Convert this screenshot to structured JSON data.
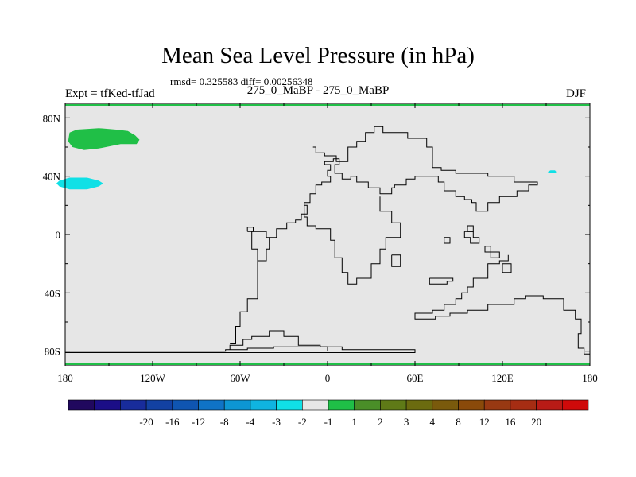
{
  "header": {
    "title": "Mean Sea Level Pressure (in hPa)",
    "stats": "rmsd= 0.325583 diff= 0.00256348",
    "expt": "Expt = tfKed-tfJad",
    "subtitle": "275_0_MaBP - 275_0_MaBP",
    "season": "DJF"
  },
  "chart_data": {
    "type": "heatmap",
    "title": "Mean Sea Level Pressure (in hPa)",
    "xlim": [
      -180,
      180
    ],
    "ylim": [
      -90,
      90
    ],
    "x_ticks": [
      {
        "value": -180,
        "label": "180"
      },
      {
        "value": -120,
        "label": "120W"
      },
      {
        "value": -60,
        "label": "60W"
      },
      {
        "value": 0,
        "label": "0"
      },
      {
        "value": 60,
        "label": "60E"
      },
      {
        "value": 120,
        "label": "120E"
      },
      {
        "value": 180,
        "label": "180"
      }
    ],
    "y_ticks": [
      {
        "value": 80,
        "label": "80N"
      },
      {
        "value": 40,
        "label": "40N"
      },
      {
        "value": 0,
        "label": "0"
      },
      {
        "value": -40,
        "label": "40S"
      },
      {
        "value": -80,
        "label": "80S"
      }
    ],
    "background_color": "#e6e6e6",
    "colorbar": {
      "colors": [
        "#20085e",
        "#1b0e87",
        "#182c9b",
        "#1241a2",
        "#0f55b1",
        "#0f73c6",
        "#0d96d3",
        "#0fb4e0",
        "#10e0e6",
        "#e6e6e6",
        "#1fbf47",
        "#4a8e28",
        "#5f7a17",
        "#6b6b0f",
        "#7a5a0c",
        "#8a4a0a",
        "#983912",
        "#a62d13",
        "#b81b16",
        "#cf0a0a"
      ],
      "labels": [
        "-20",
        "-16",
        "-12",
        "-8",
        "-4",
        "-3",
        "-2",
        "-1",
        "1",
        "2",
        "3",
        "4",
        "8",
        "12",
        "16",
        "20"
      ]
    },
    "anomalies": [
      {
        "color": "#20bf47",
        "lon": -157,
        "lat": 67
      },
      {
        "color": "#10e0e6",
        "lon": -170,
        "lat": 35
      },
      {
        "color": "#10e0e6",
        "lon": 153,
        "lat": 43
      }
    ],
    "coastlines": [
      [
        [
          -180,
          -80
        ],
        [
          -70,
          -80
        ],
        [
          -70,
          -79
        ],
        [
          -55,
          -79
        ],
        [
          -55,
          -78
        ],
        [
          -37,
          -78
        ],
        [
          -37,
          -77
        ],
        [
          10,
          -77
        ],
        [
          10,
          -79
        ],
        [
          60,
          -79
        ],
        [
          60,
          -81
        ],
        [
          -180,
          -81
        ]
      ],
      [
        [
          -67,
          -79
        ],
        [
          -67,
          -76
        ],
        [
          -58,
          -76
        ],
        [
          -58,
          -72
        ],
        [
          -52,
          -72
        ],
        [
          -52,
          -70
        ],
        [
          -40,
          -70
        ],
        [
          -40,
          -66
        ],
        [
          -30,
          -66
        ],
        [
          -30,
          -70
        ],
        [
          -20,
          -70
        ],
        [
          -20,
          -76
        ],
        [
          -5,
          -76
        ],
        [
          -5,
          -77
        ],
        [
          0,
          -77
        ],
        [
          0,
          -80
        ]
      ],
      [
        [
          -67,
          -75
        ],
        [
          -63,
          -75
        ],
        [
          -63,
          -63
        ],
        [
          -60,
          -63
        ],
        [
          -60,
          -53
        ],
        [
          -55,
          -53
        ],
        [
          -55,
          -44
        ],
        [
          -48,
          -44
        ],
        [
          -48,
          -18
        ],
        [
          -42,
          -18
        ],
        [
          -42,
          -10
        ],
        [
          -40,
          -10
        ],
        [
          -40,
          -2
        ],
        [
          -35,
          -2
        ],
        [
          -35,
          4
        ],
        [
          -28,
          4
        ],
        [
          -28,
          8
        ],
        [
          -22,
          8
        ],
        [
          -22,
          10
        ],
        [
          -18,
          10
        ],
        [
          -18,
          14
        ],
        [
          -14,
          14
        ],
        [
          -14,
          20
        ],
        [
          -16,
          20
        ],
        [
          -16,
          22
        ],
        [
          -12,
          22
        ],
        [
          -12,
          28
        ],
        [
          -8,
          28
        ],
        [
          -8,
          34
        ],
        [
          -4,
          34
        ],
        [
          -4,
          36
        ],
        [
          2,
          36
        ],
        [
          2,
          40
        ],
        [
          0,
          40
        ],
        [
          0,
          44
        ],
        [
          2,
          44
        ],
        [
          2,
          48
        ],
        [
          -2,
          48
        ],
        [
          -2,
          50
        ],
        [
          4,
          50
        ],
        [
          4,
          52
        ],
        [
          8,
          52
        ],
        [
          8,
          48
        ],
        [
          5,
          48
        ],
        [
          5,
          42
        ],
        [
          10,
          42
        ],
        [
          10,
          38
        ],
        [
          16,
          38
        ],
        [
          16,
          40
        ],
        [
          20,
          40
        ],
        [
          20,
          36
        ],
        [
          28,
          36
        ],
        [
          28,
          32
        ],
        [
          36,
          32
        ],
        [
          36,
          28
        ],
        [
          44,
          28
        ],
        [
          44,
          32
        ],
        [
          46,
          32
        ],
        [
          46,
          34
        ],
        [
          54,
          34
        ],
        [
          54,
          38
        ],
        [
          60,
          38
        ],
        [
          60,
          40
        ],
        [
          76,
          40
        ],
        [
          76,
          36
        ],
        [
          80,
          36
        ],
        [
          80,
          30
        ],
        [
          88,
          30
        ],
        [
          88,
          26
        ],
        [
          94,
          26
        ],
        [
          94,
          24
        ],
        [
          99,
          24
        ],
        [
          99,
          22
        ],
        [
          102,
          22
        ],
        [
          102,
          16
        ],
        [
          110,
          16
        ],
        [
          110,
          22
        ],
        [
          118,
          22
        ],
        [
          118,
          26
        ],
        [
          130,
          26
        ],
        [
          130,
          30
        ],
        [
          138,
          30
        ],
        [
          138,
          34
        ],
        [
          144,
          34
        ],
        [
          144,
          36
        ],
        [
          128,
          36
        ],
        [
          128,
          40
        ],
        [
          110,
          40
        ],
        [
          110,
          42
        ],
        [
          88,
          42
        ],
        [
          88,
          44
        ],
        [
          78,
          44
        ],
        [
          78,
          46
        ],
        [
          72,
          46
        ],
        [
          72,
          60
        ],
        [
          68,
          60
        ],
        [
          68,
          66
        ],
        [
          55,
          66
        ],
        [
          55,
          70
        ],
        [
          38,
          70
        ],
        [
          38,
          74
        ],
        [
          32,
          74
        ],
        [
          32,
          70
        ],
        [
          26,
          70
        ],
        [
          26,
          64
        ],
        [
          20,
          64
        ],
        [
          20,
          60
        ],
        [
          14,
          60
        ],
        [
          14,
          50
        ],
        [
          6,
          50
        ],
        [
          6,
          54
        ],
        [
          -2,
          54
        ],
        [
          -2,
          56
        ],
        [
          -8,
          56
        ],
        [
          -8,
          60
        ],
        [
          -10,
          60
        ]
      ],
      [
        [
          -48,
          -18
        ],
        [
          -48,
          -10
        ],
        [
          -52,
          -10
        ],
        [
          -52,
          -2
        ],
        [
          -52,
          2
        ],
        [
          -42,
          2
        ],
        [
          -42,
          -2
        ],
        [
          -40,
          -2
        ]
      ],
      [
        [
          -55,
          2
        ],
        [
          -55,
          5
        ],
        [
          -51,
          5
        ],
        [
          -51,
          2
        ],
        [
          -55,
          2
        ]
      ],
      [
        [
          36,
          26
        ],
        [
          36,
          16
        ],
        [
          44,
          16
        ],
        [
          44,
          8
        ],
        [
          50,
          8
        ],
        [
          50,
          -2
        ],
        [
          40,
          -2
        ],
        [
          40,
          -10
        ],
        [
          36,
          -10
        ],
        [
          36,
          -20
        ],
        [
          30,
          -20
        ],
        [
          30,
          -30
        ],
        [
          20,
          -30
        ],
        [
          20,
          -34
        ],
        [
          14,
          -34
        ],
        [
          14,
          -26
        ],
        [
          10,
          -26
        ],
        [
          10,
          -16
        ],
        [
          5,
          -16
        ],
        [
          5,
          -4
        ],
        [
          2,
          -4
        ],
        [
          2,
          4
        ],
        [
          -8,
          4
        ],
        [
          -8,
          6
        ],
        [
          -14,
          6
        ],
        [
          -14,
          12
        ],
        [
          -16,
          12
        ],
        [
          -16,
          20
        ]
      ],
      [
        [
          44,
          -14
        ],
        [
          44,
          -22
        ],
        [
          50,
          -22
        ],
        [
          50,
          -14
        ],
        [
          44,
          -14
        ]
      ],
      [
        [
          80,
          -2
        ],
        [
          80,
          -6
        ],
        [
          84,
          -6
        ],
        [
          84,
          -2
        ],
        [
          80,
          -2
        ]
      ],
      [
        [
          94,
          2
        ],
        [
          94,
          -2
        ],
        [
          98,
          -2
        ],
        [
          98,
          -6
        ],
        [
          104,
          -6
        ],
        [
          104,
          -2
        ],
        [
          100,
          -2
        ],
        [
          100,
          2
        ],
        [
          94,
          2
        ]
      ],
      [
        [
          96,
          6
        ],
        [
          96,
          2
        ],
        [
          100,
          2
        ],
        [
          100,
          6
        ],
        [
          96,
          6
        ]
      ],
      [
        [
          108,
          -8
        ],
        [
          108,
          -12
        ],
        [
          112,
          -12
        ],
        [
          112,
          -8
        ],
        [
          108,
          -8
        ]
      ],
      [
        [
          112,
          -12
        ],
        [
          112,
          -16
        ],
        [
          118,
          -16
        ],
        [
          118,
          -12
        ],
        [
          112,
          -12
        ]
      ],
      [
        [
          124,
          -14
        ],
        [
          124,
          -18
        ],
        [
          118,
          -18
        ],
        [
          118,
          -20
        ],
        [
          110,
          -20
        ],
        [
          110,
          -30
        ],
        [
          100,
          -30
        ],
        [
          100,
          -36
        ],
        [
          96,
          -36
        ],
        [
          96,
          -40
        ],
        [
          92,
          -40
        ],
        [
          92,
          -44
        ],
        [
          88,
          -44
        ],
        [
          88,
          -48
        ],
        [
          80,
          -48
        ],
        [
          80,
          -52
        ],
        [
          72,
          -52
        ],
        [
          72,
          -54
        ],
        [
          60,
          -54
        ],
        [
          60,
          -58
        ],
        [
          74,
          -58
        ],
        [
          74,
          -56
        ],
        [
          84,
          -56
        ],
        [
          84,
          -54
        ],
        [
          96,
          -54
        ],
        [
          96,
          -52
        ],
        [
          110,
          -52
        ],
        [
          110,
          -48
        ],
        [
          128,
          -48
        ],
        [
          128,
          -44
        ],
        [
          136,
          -44
        ],
        [
          136,
          -42
        ],
        [
          148,
          -42
        ],
        [
          148,
          -44
        ],
        [
          162,
          -44
        ],
        [
          162,
          -52
        ],
        [
          170,
          -52
        ],
        [
          170,
          -58
        ],
        [
          174,
          -58
        ],
        [
          174,
          -68
        ],
        [
          172,
          -68
        ],
        [
          172,
          -78
        ],
        [
          176,
          -78
        ],
        [
          176,
          -82
        ],
        [
          180,
          -82
        ]
      ],
      [
        [
          70,
          -30
        ],
        [
          70,
          -34
        ],
        [
          82,
          -34
        ],
        [
          82,
          -32
        ],
        [
          86,
          -32
        ],
        [
          86,
          -30
        ],
        [
          70,
          -30
        ]
      ],
      [
        [
          120,
          -20
        ],
        [
          120,
          -26
        ],
        [
          126,
          -26
        ],
        [
          126,
          -20
        ],
        [
          120,
          -20
        ]
      ]
    ]
  }
}
